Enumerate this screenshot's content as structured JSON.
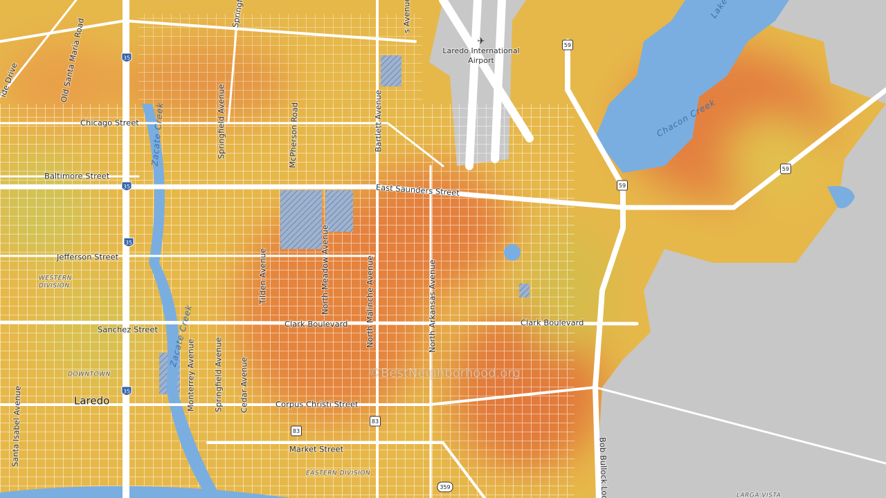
{
  "map": {
    "streets": {
      "chicago": "Chicago Street",
      "baltimore": "Baltimore Street",
      "jefferson": "Jefferson Street",
      "sanchez": "Sanchez Street",
      "east_saunders": "East Saunders Street",
      "clark_west": "Clark Boulevard",
      "clark_east": "Clark Boulevard",
      "corpus_christi": "Corpus Christi Street",
      "market": "Market Street",
      "springfield_north": "Springfield Avenue",
      "springfield_south": "Springfield Avenue",
      "springfield_top": "Springfi",
      "mcpherson": "McPherson Road",
      "bartlett": "Bartlett Avenue",
      "north_meadow": "North Meadow Avenue",
      "tilden": "Tilden Avenue",
      "north_malinche": "North Malinche Avenue",
      "north_arkansas": "North Arkansas Avenue",
      "arkansas_top": "s Avenue",
      "monterrey": "Monterrey Avenue",
      "cedar": "Cedar Avenue",
      "santa_isabel": "Santa Isabel Avenue",
      "old_santa_maria": "Old Santa Maria Road",
      "ide_drive": "ide Drive",
      "bob_bullock": "Bob Bullock Loo"
    },
    "water": {
      "zacate_north": "Zacate Creek",
      "zacate_south": "Zacate Creek",
      "chacon": "Chacon Creek",
      "lake": "Lake"
    },
    "places": {
      "city": "Laredo",
      "downtown": "DOWNTOWN",
      "western_division": [
        "WESTERN",
        "DIVISION"
      ],
      "eastern_division": "EASTERN DIVISION",
      "larga_vista": "LARGA VISTA",
      "airport": [
        "Laredo International",
        "Airport"
      ]
    },
    "shields": [
      "35",
      "35",
      "35",
      "35",
      "59",
      "59",
      "59",
      "83",
      "83",
      "359"
    ],
    "watermark": "©BestNeighborhood.org"
  }
}
